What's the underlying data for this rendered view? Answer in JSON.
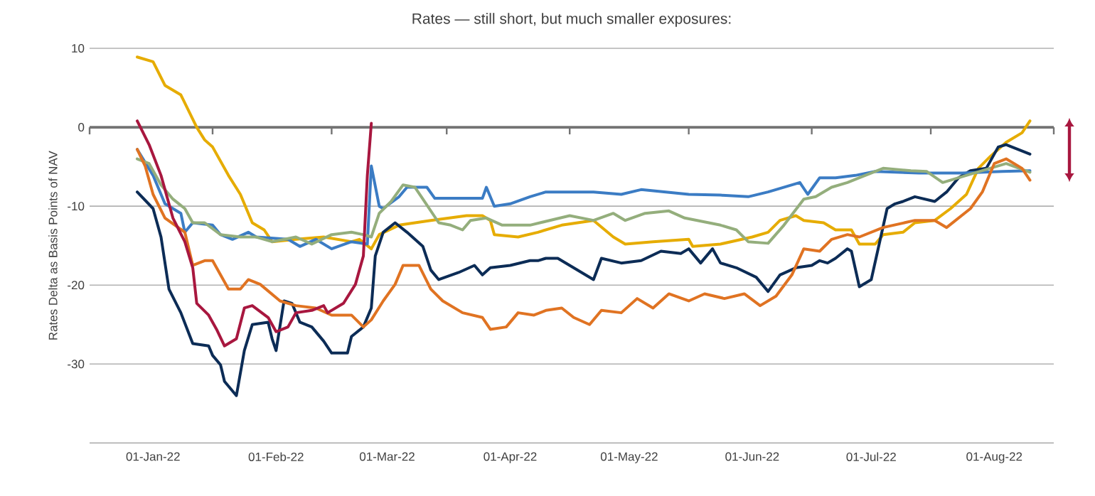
{
  "chart_data": {
    "type": "line",
    "title": "Rates — still short, but much smaller exposures:",
    "ylabel": "Rates Delta as Basis Points of NAV",
    "grid": "y",
    "xlim": [
      "2021-12-16",
      "2022-08-16"
    ],
    "xticks": [
      {
        "value": "2021-12-16",
        "label": null
      },
      {
        "value": "2022-01-01",
        "label": "01-Jan-22"
      },
      {
        "value": "2022-01-16",
        "label": null
      },
      {
        "value": "2022-02-01",
        "label": "01-Feb-22"
      },
      {
        "value": "2022-02-15",
        "label": null
      },
      {
        "value": "2022-03-01",
        "label": "01-Mar-22"
      },
      {
        "value": "2022-03-16",
        "label": null
      },
      {
        "value": "2022-04-01",
        "label": "01-Apr-22"
      },
      {
        "value": "2022-04-16",
        "label": null
      },
      {
        "value": "2022-05-01",
        "label": "01-May-22"
      },
      {
        "value": "2022-05-16",
        "label": null
      },
      {
        "value": "2022-06-01",
        "label": "01-Jun-22"
      },
      {
        "value": "2022-06-16",
        "label": null
      },
      {
        "value": "2022-07-01",
        "label": "01-Jul-22"
      },
      {
        "value": "2022-07-16",
        "label": null
      },
      {
        "value": "2022-08-01",
        "label": "01-Aug-22"
      },
      {
        "value": "2022-08-16",
        "label": null
      }
    ],
    "ylim": [
      -40,
      10
    ],
    "yticks": [
      10,
      0,
      -10,
      -20,
      -30,
      {
        "value": -40,
        "label": null
      }
    ],
    "series": [
      {
        "color": "#e6ac00",
        "x": [
          "2021-12-28",
          "2022-01-01",
          "2022-01-04",
          "2022-01-08",
          "2022-01-12",
          "2022-01-14",
          "2022-01-16",
          "2022-01-20",
          "2022-01-23",
          "2022-01-26",
          "2022-01-29",
          "2022-01-31",
          "2022-02-06",
          "2022-02-13",
          "2022-02-20",
          "2022-02-22",
          "2022-02-25",
          "2022-02-27",
          "2022-03-04",
          "2022-03-12",
          "2022-03-21",
          "2022-03-25",
          "2022-03-27",
          "2022-03-28",
          "2022-04-03",
          "2022-04-08",
          "2022-04-14",
          "2022-04-22",
          "2022-04-27",
          "2022-04-30",
          "2022-05-07",
          "2022-05-16",
          "2022-05-17",
          "2022-05-24",
          "2022-06-01",
          "2022-06-05",
          "2022-06-08",
          "2022-06-12",
          "2022-06-14",
          "2022-06-19",
          "2022-06-22",
          "2022-06-26",
          "2022-06-28",
          "2022-07-02",
          "2022-07-04",
          "2022-07-09",
          "2022-07-12",
          "2022-07-17",
          "2022-07-21",
          "2022-07-25",
          "2022-07-28",
          "2022-07-31",
          "2022-08-04",
          "2022-08-08",
          "2022-08-10"
        ],
        "values": [
          8.9,
          8.3,
          5.3,
          4.1,
          0,
          -1.6,
          -2.5,
          -6.1,
          -8.5,
          -12.1,
          -13,
          -14.5,
          -14.2,
          -13.9,
          -14.5,
          -14.2,
          -15.4,
          -13.6,
          -12.4,
          -11.8,
          -11.2,
          -11.2,
          -11.8,
          -13.6,
          -13.9,
          -13.3,
          -12.4,
          -11.8,
          -13.9,
          -14.8,
          -14.5,
          -14.2,
          -15.1,
          -14.8,
          -13.9,
          -13.3,
          -11.8,
          -11.2,
          -11.8,
          -12.1,
          -13,
          -13,
          -14.8,
          -14.8,
          -13.6,
          -13.3,
          -12.1,
          -11.8,
          -10.3,
          -8.5,
          -5.2,
          -3.7,
          -1.9,
          -0.7,
          0.8
        ]
      },
      {
        "color": "#0c2c56",
        "x": [
          "2021-12-28",
          "2022-01-01",
          "2022-01-03",
          "2022-01-05",
          "2022-01-08",
          "2022-01-11",
          "2022-01-15",
          "2022-01-16",
          "2022-01-18",
          "2022-01-19",
          "2022-01-22",
          "2022-01-24",
          "2022-01-26",
          "2022-01-30",
          "2022-01-31",
          "2022-02-01",
          "2022-02-03",
          "2022-02-05",
          "2022-02-07",
          "2022-02-10",
          "2022-02-13",
          "2022-02-15",
          "2022-02-19",
          "2022-02-20",
          "2022-02-23",
          "2022-02-25",
          "2022-02-26",
          "2022-02-28",
          "2022-03-03",
          "2022-03-06",
          "2022-03-10",
          "2022-03-12",
          "2022-03-14",
          "2022-03-19",
          "2022-03-23",
          "2022-03-25",
          "2022-03-27",
          "2022-04-01",
          "2022-04-06",
          "2022-04-08",
          "2022-04-10",
          "2022-04-13",
          "2022-04-16",
          "2022-04-22",
          "2022-04-24",
          "2022-04-29",
          "2022-05-04",
          "2022-05-09",
          "2022-05-14",
          "2022-05-16",
          "2022-05-19",
          "2022-05-22",
          "2022-05-24",
          "2022-05-28",
          "2022-06-02",
          "2022-06-05",
          "2022-06-08",
          "2022-06-12",
          "2022-06-16",
          "2022-06-18",
          "2022-06-20",
          "2022-06-22",
          "2022-06-25",
          "2022-06-26",
          "2022-06-28",
          "2022-07-01",
          "2022-07-05",
          "2022-07-07",
          "2022-07-09",
          "2022-07-12",
          "2022-07-17",
          "2022-07-20",
          "2022-07-23",
          "2022-07-26",
          "2022-07-30",
          "2022-08-02",
          "2022-08-04",
          "2022-08-07",
          "2022-08-10"
        ],
        "values": [
          -8.2,
          -10.3,
          -13.9,
          -20.5,
          -23.5,
          -27.4,
          -27.7,
          -28.9,
          -30.1,
          -32.2,
          -34,
          -28.3,
          -25,
          -24.7,
          -26.8,
          -28.3,
          -22,
          -22.3,
          -24.7,
          -25.3,
          -27.1,
          -28.6,
          -28.6,
          -26.5,
          -25.3,
          -22.9,
          -16.3,
          -13.3,
          -12.1,
          -13.3,
          -15.1,
          -18.1,
          -19.3,
          -18.4,
          -17.5,
          -18.7,
          -17.8,
          -17.5,
          -16.9,
          -16.9,
          -16.6,
          -16.6,
          -17.5,
          -19.3,
          -16.6,
          -17.2,
          -16.9,
          -15.7,
          -16,
          -15.4,
          -17.2,
          -15.4,
          -17.2,
          -17.8,
          -19,
          -20.8,
          -18.7,
          -17.8,
          -17.5,
          -16.9,
          -17.2,
          -16.6,
          -15.4,
          -15.7,
          -20.2,
          -19.3,
          -10.3,
          -9.7,
          -9.4,
          -8.8,
          -9.4,
          -8.2,
          -6.4,
          -5.5,
          -5.2,
          -2.5,
          -2.2,
          -2.8,
          -3.4
        ]
      },
      {
        "color": "#3b7cc4",
        "x": [
          "2021-12-28",
          "2022-01-01",
          "2022-01-04",
          "2022-01-08",
          "2022-01-09",
          "2022-01-11",
          "2022-01-16",
          "2022-01-18",
          "2022-01-21",
          "2022-01-25",
          "2022-01-27",
          "2022-02-04",
          "2022-02-07",
          "2022-02-11",
          "2022-02-15",
          "2022-02-20",
          "2022-02-24",
          "2022-02-25",
          "2022-02-27",
          "2022-02-28",
          "2022-03-04",
          "2022-03-06",
          "2022-03-11",
          "2022-03-13",
          "2022-03-25",
          "2022-03-26",
          "2022-03-28",
          "2022-04-01",
          "2022-04-06",
          "2022-04-10",
          "2022-04-22",
          "2022-04-29",
          "2022-05-04",
          "2022-05-16",
          "2022-05-24",
          "2022-05-31",
          "2022-06-05",
          "2022-06-13",
          "2022-06-15",
          "2022-06-18",
          "2022-06-22",
          "2022-06-27",
          "2022-07-02",
          "2022-07-13",
          "2022-07-24",
          "2022-08-03",
          "2022-08-10"
        ],
        "values": [
          -2.8,
          -6.1,
          -9.7,
          -10.9,
          -13.3,
          -12.1,
          -12.4,
          -13.6,
          -14.2,
          -13.3,
          -13.9,
          -14.2,
          -15.1,
          -14.2,
          -15.4,
          -14.5,
          -14.8,
          -4.9,
          -10,
          -10.3,
          -8.8,
          -7.6,
          -7.6,
          -9,
          -9,
          -7.6,
          -10,
          -9.7,
          -8.8,
          -8.2,
          -8.2,
          -8.5,
          -7.9,
          -8.5,
          -8.6,
          -8.8,
          -8.2,
          -7,
          -8.5,
          -6.4,
          -6.4,
          -6.1,
          -5.6,
          -5.8,
          -5.8,
          -5.6,
          -5.5
        ]
      },
      {
        "color": "#94ae7c",
        "x": [
          "2021-12-28",
          "2021-12-31",
          "2022-01-03",
          "2022-01-06",
          "2022-01-09",
          "2022-01-11",
          "2022-01-14",
          "2022-01-18",
          "2022-01-23",
          "2022-01-27",
          "2022-01-31",
          "2022-02-06",
          "2022-02-10",
          "2022-02-15",
          "2022-02-20",
          "2022-02-23",
          "2022-02-25",
          "2022-02-27",
          "2022-03-02",
          "2022-03-05",
          "2022-03-08",
          "2022-03-10",
          "2022-03-14",
          "2022-03-17",
          "2022-03-20",
          "2022-03-22",
          "2022-03-26",
          "2022-03-30",
          "2022-04-06",
          "2022-04-11",
          "2022-04-16",
          "2022-04-22",
          "2022-04-27",
          "2022-04-30",
          "2022-05-05",
          "2022-05-11",
          "2022-05-15",
          "2022-05-24",
          "2022-05-28",
          "2022-05-31",
          "2022-06-05",
          "2022-06-09",
          "2022-06-14",
          "2022-06-17",
          "2022-06-21",
          "2022-06-25",
          "2022-06-28",
          "2022-07-04",
          "2022-07-11",
          "2022-07-15",
          "2022-07-19",
          "2022-07-23",
          "2022-07-29",
          "2022-08-04",
          "2022-08-10"
        ],
        "values": [
          -4,
          -4.6,
          -7.3,
          -9.1,
          -10.3,
          -12.1,
          -12.1,
          -13.6,
          -13.9,
          -13.9,
          -14.5,
          -13.9,
          -14.8,
          -13.6,
          -13.3,
          -13.6,
          -13.9,
          -10.9,
          -9.4,
          -7.3,
          -7.6,
          -9.1,
          -12.1,
          -12.4,
          -13,
          -11.8,
          -11.5,
          -12.4,
          -12.4,
          -11.8,
          -11.2,
          -11.8,
          -10.9,
          -11.8,
          -10.9,
          -10.6,
          -11.5,
          -12.4,
          -13,
          -14.5,
          -14.7,
          -12.4,
          -9.1,
          -8.8,
          -7.6,
          -7,
          -6.4,
          -5.2,
          -5.5,
          -5.6,
          -7,
          -6.4,
          -5.5,
          -4.6,
          -5.7
        ]
      },
      {
        "color": "#e07322",
        "x": [
          "2021-12-28",
          "2021-12-30",
          "2022-01-01",
          "2022-01-04",
          "2022-01-09",
          "2022-01-11",
          "2022-01-14",
          "2022-01-16",
          "2022-01-20",
          "2022-01-23",
          "2022-01-25",
          "2022-01-28",
          "2022-02-02",
          "2022-02-06",
          "2022-02-11",
          "2022-02-15",
          "2022-02-20",
          "2022-02-23",
          "2022-02-25",
          "2022-02-28",
          "2022-03-03",
          "2022-03-05",
          "2022-03-09",
          "2022-03-12",
          "2022-03-15",
          "2022-03-20",
          "2022-03-25",
          "2022-03-27",
          "2022-03-31",
          "2022-04-03",
          "2022-04-07",
          "2022-04-10",
          "2022-04-14",
          "2022-04-17",
          "2022-04-21",
          "2022-04-24",
          "2022-04-29",
          "2022-05-03",
          "2022-05-07",
          "2022-05-11",
          "2022-05-16",
          "2022-05-20",
          "2022-05-25",
          "2022-05-30",
          "2022-06-03",
          "2022-06-07",
          "2022-06-11",
          "2022-06-14",
          "2022-06-18",
          "2022-06-21",
          "2022-06-25",
          "2022-06-28",
          "2022-07-04",
          "2022-07-12",
          "2022-07-17",
          "2022-07-20",
          "2022-07-23",
          "2022-07-26",
          "2022-07-29",
          "2022-08-01",
          "2022-08-04",
          "2022-08-08",
          "2022-08-10"
        ],
        "values": [
          -2.8,
          -4.9,
          -8.5,
          -11.5,
          -13.3,
          -17.5,
          -16.9,
          -16.9,
          -20.5,
          -20.5,
          -19.3,
          -19.9,
          -22,
          -22.6,
          -22.9,
          -23.8,
          -23.8,
          -25.3,
          -24.4,
          -22,
          -19.9,
          -17.5,
          -17.5,
          -20.5,
          -22,
          -23.5,
          -24.1,
          -25.6,
          -25.3,
          -23.5,
          -23.8,
          -23.2,
          -22.9,
          -24.1,
          -25,
          -23.2,
          -23.5,
          -21.7,
          -22.9,
          -21.1,
          -22,
          -21.1,
          -21.7,
          -21.1,
          -22.6,
          -21.4,
          -18.7,
          -15.4,
          -15.7,
          -14.2,
          -13.6,
          -13.9,
          -12.7,
          -11.8,
          -11.8,
          -12.7,
          -11.5,
          -10.3,
          -8.2,
          -4.6,
          -4,
          -5.2,
          -6.7
        ]
      },
      {
        "color": "#a8173f",
        "x": [
          "2021-12-28",
          "2021-12-31",
          "2022-01-03",
          "2022-01-06",
          "2022-01-09",
          "2022-01-11",
          "2022-01-12",
          "2022-01-15",
          "2022-01-17",
          "2022-01-19",
          "2022-01-22",
          "2022-01-24",
          "2022-01-26",
          "2022-01-30",
          "2022-02-01",
          "2022-02-04",
          "2022-02-06",
          "2022-02-10",
          "2022-02-13",
          "2022-02-14",
          "2022-02-18",
          "2022-02-21",
          "2022-02-23",
          "2022-02-24",
          "2022-02-25"
        ],
        "values": [
          0.8,
          -2.2,
          -6.1,
          -11.5,
          -14.5,
          -17.8,
          -22.3,
          -23.8,
          -25.6,
          -27.7,
          -26.8,
          -22.9,
          -22.6,
          -24.1,
          -25.9,
          -25.3,
          -23.5,
          -23.2,
          -22.6,
          -23.5,
          -22.3,
          -19.9,
          -16.3,
          -6.1,
          0.5
        ]
      }
    ]
  }
}
